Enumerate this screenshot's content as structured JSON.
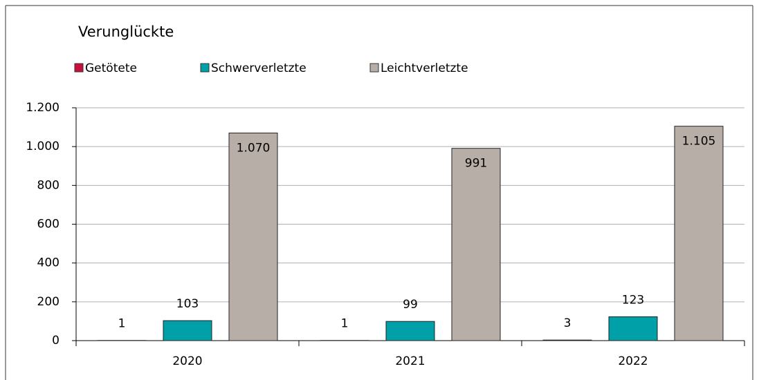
{
  "chart_data": {
    "type": "bar",
    "title": "Verunglückte",
    "categories": [
      "2020",
      "2021",
      "2022"
    ],
    "series": [
      {
        "name": "Getötete",
        "color": "#c8103e",
        "values": [
          1,
          1,
          3
        ]
      },
      {
        "name": "Schwerverletzte",
        "color": "#00a0a8",
        "values": [
          103,
          99,
          123
        ]
      },
      {
        "name": "Leichtverletzte",
        "color": "#b8aea8",
        "values": [
          1070,
          991,
          1105
        ],
        "value_labels": [
          "1.070",
          "991",
          "1.105"
        ]
      }
    ],
    "ylim": [
      0,
      1200
    ],
    "yticks": [
      0,
      200,
      400,
      600,
      800,
      {
        "value": 1000,
        "label": "1.000"
      },
      {
        "value": 1200,
        "label": "1.200"
      }
    ],
    "grid": true
  }
}
